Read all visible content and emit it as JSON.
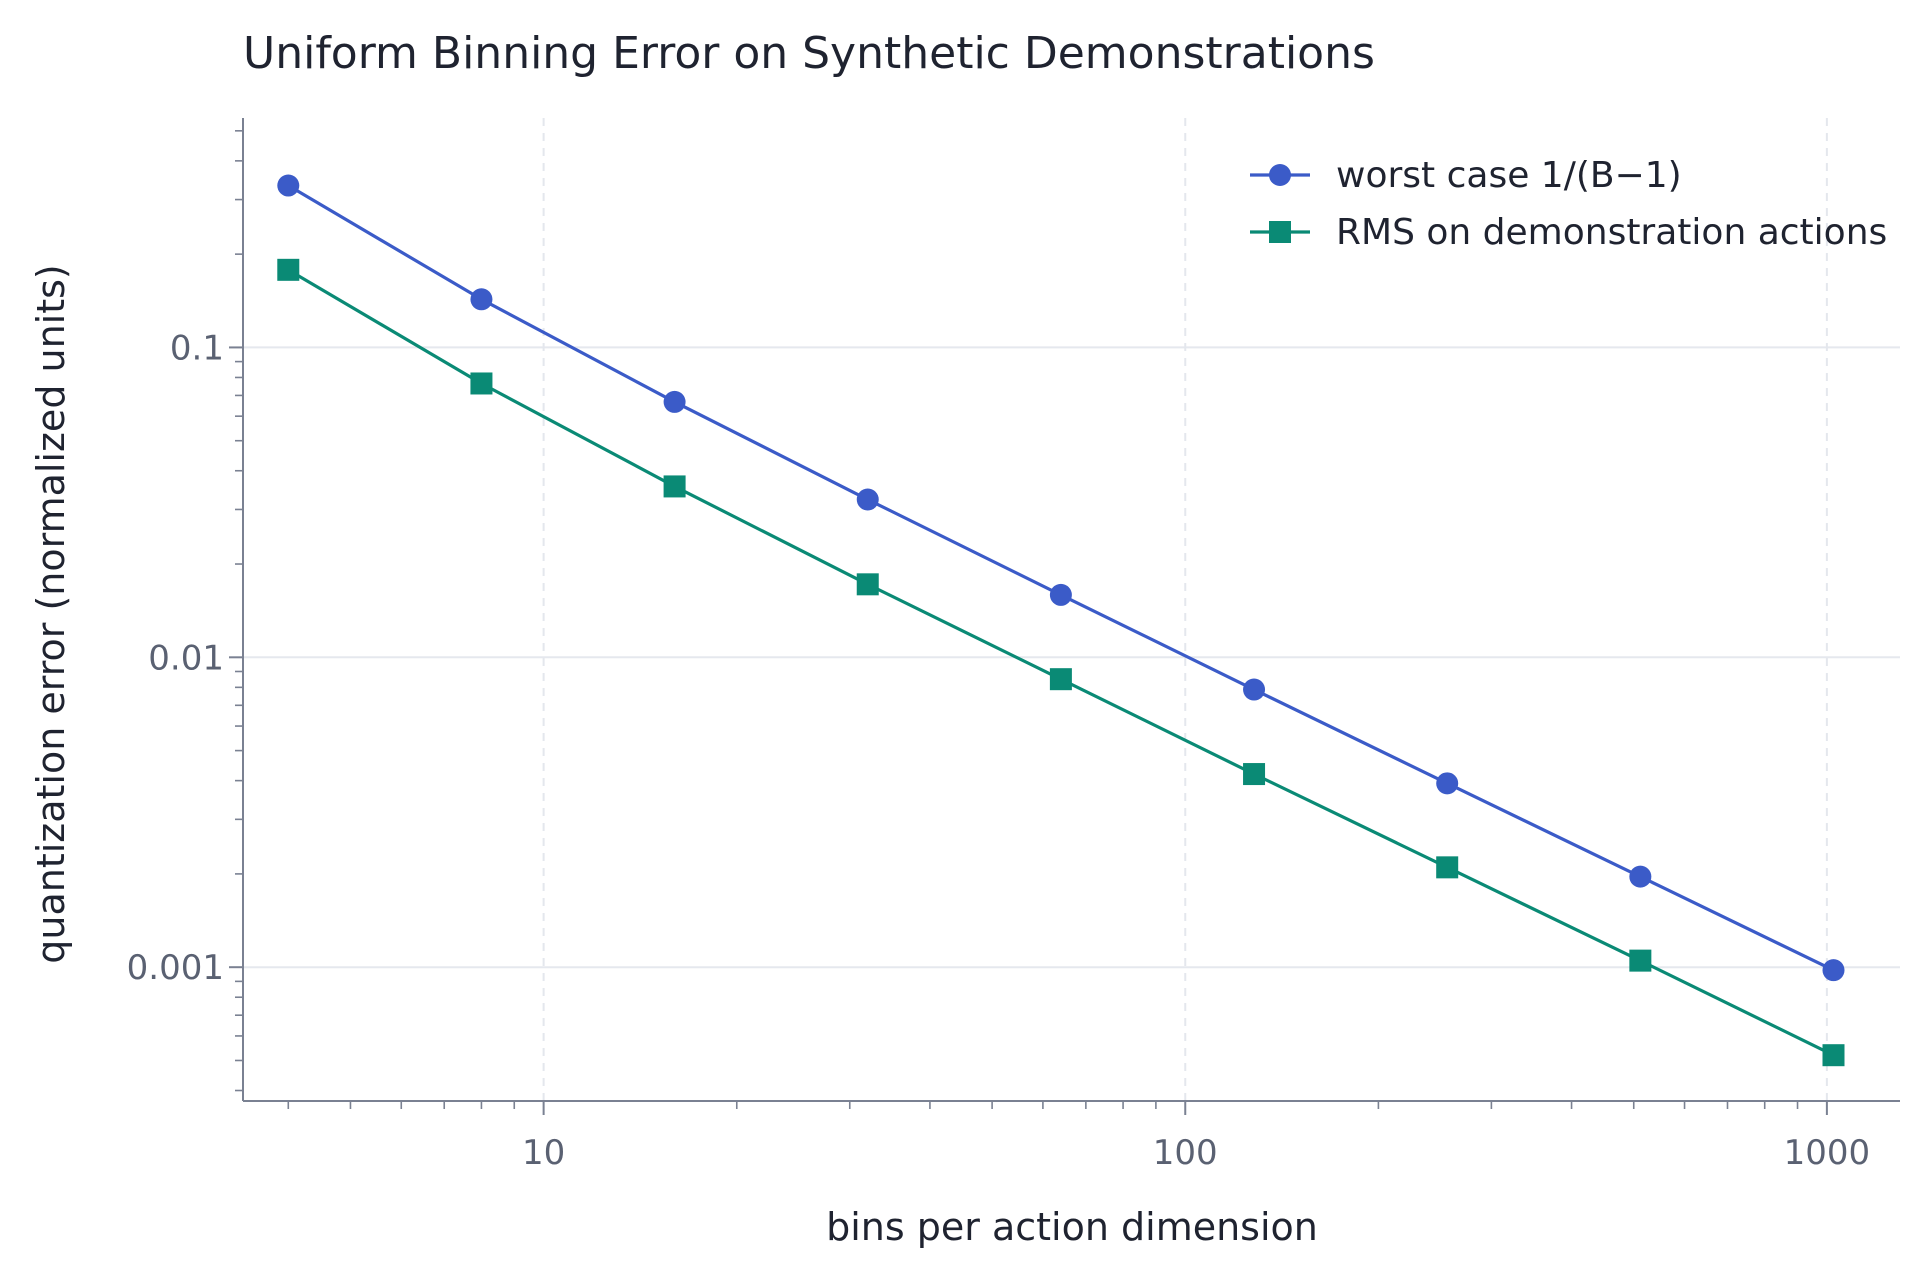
{
  "chart_data": {
    "type": "line",
    "title": "Uniform Binning Error on Synthetic Demonstrations",
    "xlabel": "bins per action dimension",
    "ylabel": "quantization error (normalized units)",
    "x_scale": "log",
    "y_scale": "log",
    "xlim": [
      3.4,
      1300
    ],
    "ylim": [
      0.00037,
      0.55
    ],
    "x_ticks": [
      10,
      100,
      1000
    ],
    "x_tick_labels": [
      "10",
      "100",
      "1000"
    ],
    "y_ticks": [
      0.001,
      0.01,
      0.1
    ],
    "y_tick_labels": [
      "0.001",
      "0.01",
      "0.1"
    ],
    "grid": true,
    "legend_position": "top-right",
    "x": [
      4,
      8,
      16,
      32,
      64,
      128,
      256,
      512,
      1024
    ],
    "series": [
      {
        "name": "worst case 1/(B−1)",
        "values": [
          0.333,
          0.143,
          0.0667,
          0.0323,
          0.0159,
          0.00787,
          0.00392,
          0.00196,
          0.000978
        ],
        "color": "#3b5bc8",
        "marker": "circle"
      },
      {
        "name": "RMS on demonstration actions",
        "values": [
          0.178,
          0.0765,
          0.0356,
          0.0172,
          0.0085,
          0.0042,
          0.0021,
          0.00105,
          0.00052
        ],
        "color": "#0a8a75",
        "marker": "square"
      }
    ]
  }
}
